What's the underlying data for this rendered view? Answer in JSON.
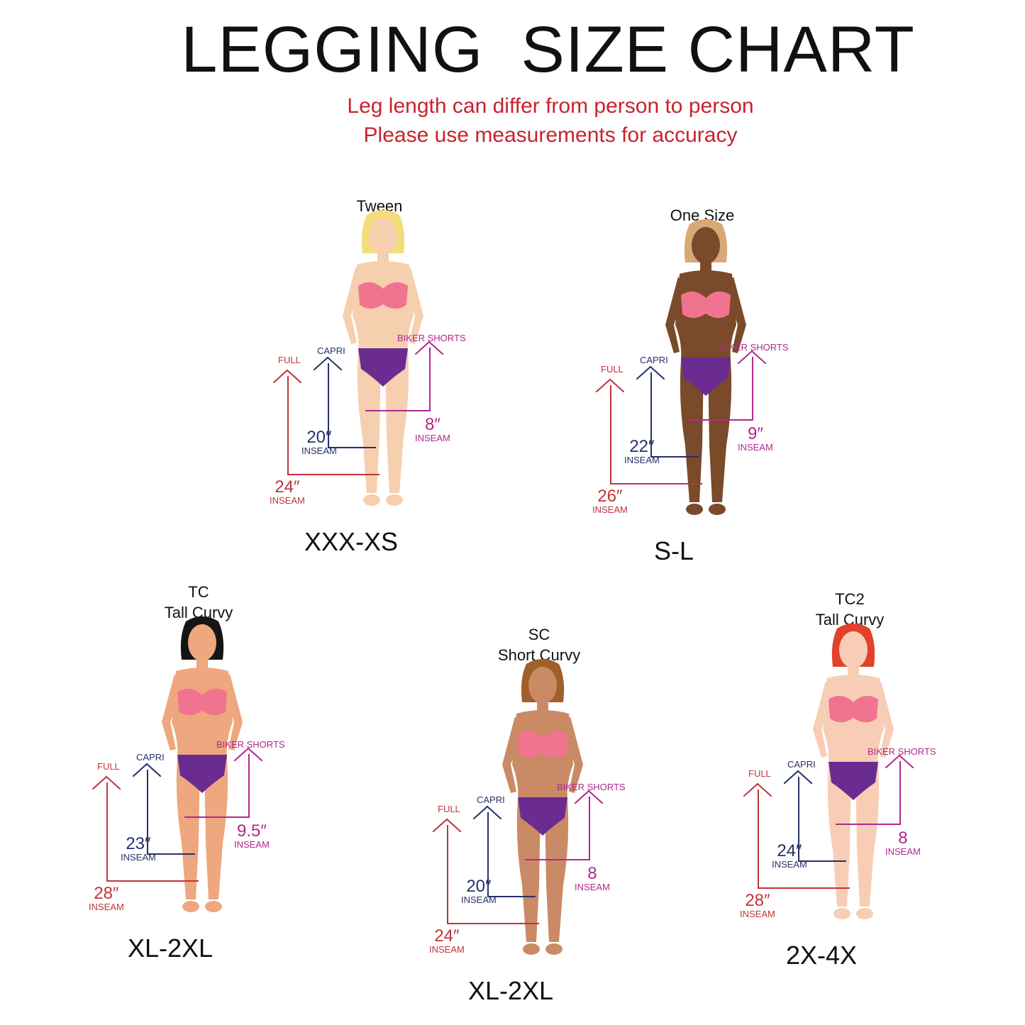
{
  "title": "LEGGING  SIZE CHART",
  "subtitle_lines": [
    "Leg length can differ from person to person",
    "Please use measurements for accuracy"
  ],
  "colors": {
    "full": "#c0343b",
    "capri": "#27306b",
    "biker": "#b0288e",
    "subtitle": "#c8232c",
    "bra": "#f0748f",
    "briefs": "#6a2c91"
  },
  "labels": {
    "full": "FULL",
    "capri": "CAPRI",
    "biker": "BIKER SHORTS",
    "inseam": "INSEAM"
  },
  "panels": [
    {
      "id": "tween",
      "heading": [
        "Tween"
      ],
      "size": "XXX-XS",
      "full": "24″",
      "capri": "20″",
      "biker": "8″",
      "skin": "#f6cfae",
      "hair": "#f3dc7a"
    },
    {
      "id": "one-size",
      "heading": [
        "One Size"
      ],
      "size": "S-L",
      "full": "26″",
      "capri": "22″",
      "biker": "9″",
      "skin": "#7a4a2a",
      "hair": "#d9a877"
    },
    {
      "id": "tc",
      "heading": [
        "TC",
        "Tall Curvy"
      ],
      "size": "XL-2XL",
      "full": "28″",
      "capri": "23″",
      "biker": "9.5″",
      "skin": "#eea77e",
      "hair": "#151515"
    },
    {
      "id": "sc",
      "heading": [
        "SC",
        "Short Curvy"
      ],
      "size": "XL-2XL",
      "full": "24″",
      "capri": "20″",
      "biker": "8",
      "skin": "#c98a65",
      "hair": "#a0602a"
    },
    {
      "id": "tc2",
      "heading": [
        "TC2",
        "Tall Curvy"
      ],
      "size": "2X-4X",
      "full": "28″",
      "capri": "24″",
      "biker": "8",
      "skin": "#f8cdb6",
      "hair": "#e2412b"
    }
  ]
}
